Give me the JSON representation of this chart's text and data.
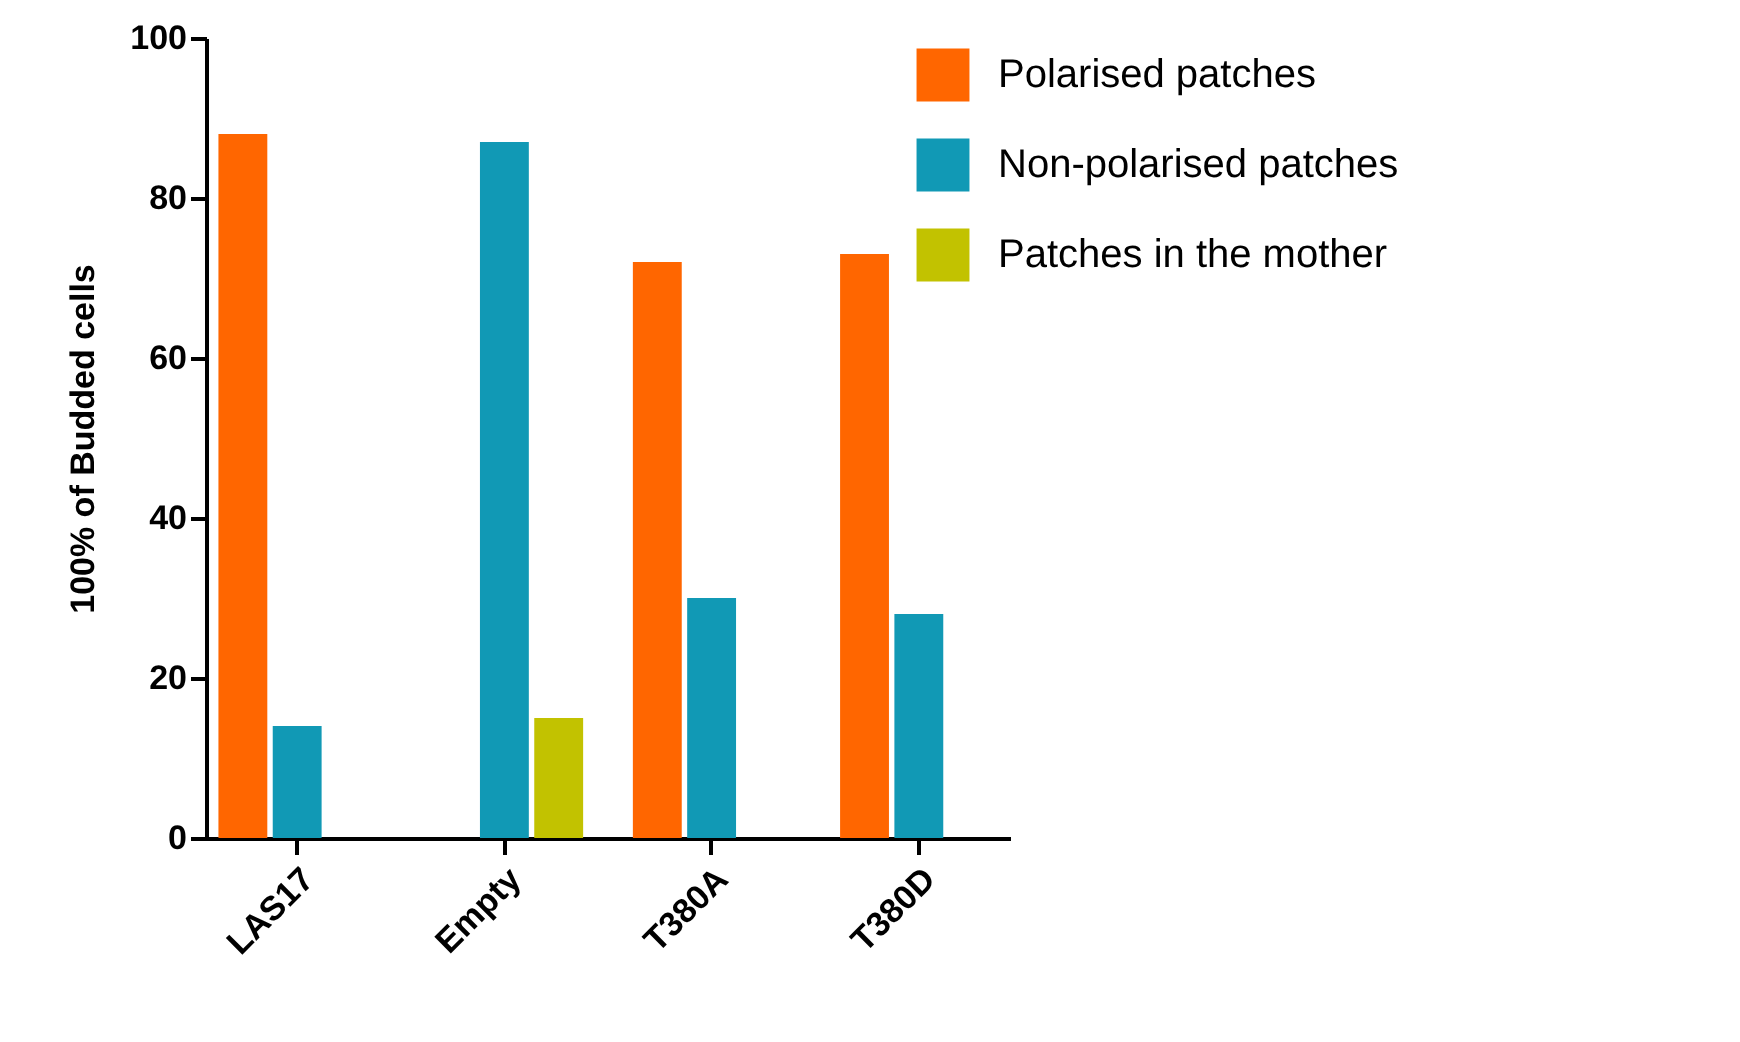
{
  "chart_data": {
    "type": "bar",
    "ylabel": "100% of Budded cells",
    "categories": [
      "LAS17",
      "Empty",
      "T380A",
      "T380D"
    ],
    "series": [
      {
        "name": "Polarised patches",
        "color": "#ff6600",
        "values": [
          88,
          0,
          72,
          73
        ]
      },
      {
        "name": "Non-polarised patches",
        "color": "#1199b5",
        "values": [
          14,
          87,
          30,
          28
        ]
      },
      {
        "name": "Patches in the mother",
        "color": "#c2c200",
        "values": [
          0,
          15,
          0,
          0
        ]
      }
    ],
    "ylim": [
      0,
      100
    ],
    "yticks": [
      0,
      20,
      40,
      60,
      80,
      100
    ],
    "grid": false,
    "legend": "top right"
  }
}
